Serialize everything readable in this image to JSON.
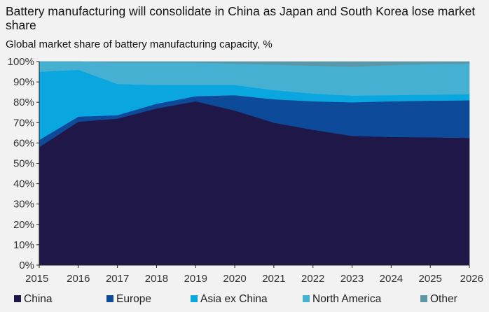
{
  "header": {
    "title": "Battery manufacturing will consolidate in China as Japan and South Korea lose market share",
    "subtitle": "Global market share of battery manufacturing capacity, %"
  },
  "chart_data": {
    "type": "area",
    "stacked": true,
    "title": "Battery manufacturing will consolidate in China as Japan and South Korea lose market share",
    "subtitle": "Global market share of battery manufacturing capacity, %",
    "xlabel": "",
    "ylabel": "",
    "x": [
      "2015",
      "2016",
      "2017",
      "2018",
      "2019",
      "2020",
      "2021",
      "2022",
      "2023",
      "2024",
      "2025",
      "2026"
    ],
    "ylim": [
      0,
      100
    ],
    "yticks": [
      "0%",
      "10%",
      "20%",
      "30%",
      "40%",
      "50%",
      "60%",
      "70%",
      "80%",
      "90%",
      "100%"
    ],
    "grid": false,
    "legend_position": "bottom",
    "series": [
      {
        "name": "China",
        "color": "#1f1747",
        "values": [
          58,
          70.5,
          72,
          77,
          80.5,
          76,
          70,
          66.5,
          63.5,
          63,
          62.8,
          62.5
        ]
      },
      {
        "name": "Europe",
        "color": "#0e4a9a",
        "values": [
          3.5,
          2.5,
          1.7,
          2.3,
          2.5,
          7.5,
          11.5,
          14,
          16.5,
          17.5,
          18,
          18.5
        ]
      },
      {
        "name": "Asia ex China",
        "color": "#0aa6e0",
        "values": [
          33.5,
          23,
          15.3,
          9.2,
          5.5,
          5,
          4.5,
          3.8,
          3.3,
          3,
          3,
          3
        ]
      },
      {
        "name": "North America",
        "color": "#46b0d2",
        "values": [
          5,
          4,
          10.5,
          11,
          11,
          10.5,
          12.5,
          13.7,
          14.2,
          14.8,
          15,
          15
        ]
      },
      {
        "name": "Other",
        "color": "#5b97a6",
        "values": [
          0,
          0,
          0.5,
          0.5,
          0.5,
          1,
          1.5,
          2,
          2.5,
          1.7,
          1.2,
          1
        ]
      }
    ]
  }
}
